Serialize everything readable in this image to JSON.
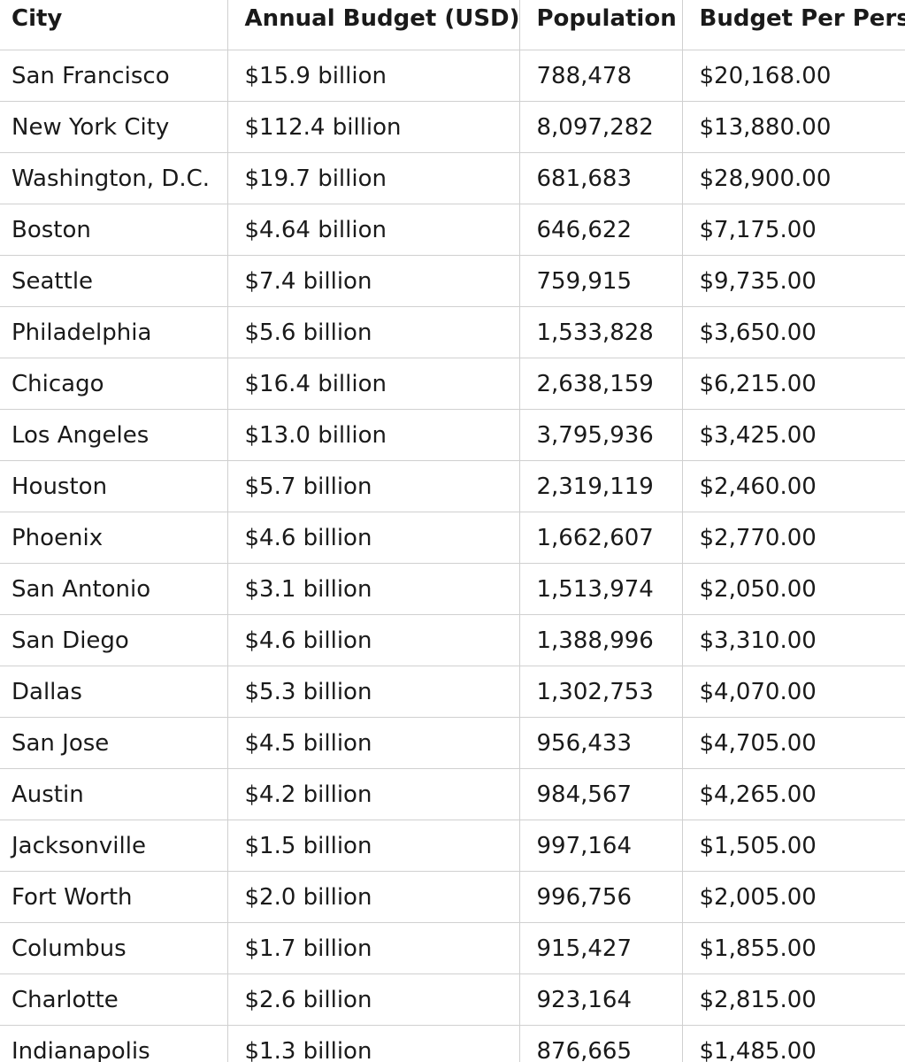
{
  "table": {
    "headers": [
      "City",
      "Annual Budget (USD)",
      "Population",
      "Budget Per Person"
    ],
    "rows": [
      [
        "San Francisco",
        "$15.9 billion",
        "788,478",
        "$20,168.00"
      ],
      [
        "New York City",
        "$112.4 billion",
        "8,097,282",
        "$13,880.00"
      ],
      [
        "Washington, D.C.",
        "$19.7 billion",
        "681,683",
        "$28,900.00"
      ],
      [
        "Boston",
        "$4.64 billion",
        "646,622",
        "$7,175.00"
      ],
      [
        "Seattle",
        "$7.4 billion",
        "759,915",
        "$9,735.00"
      ],
      [
        "Philadelphia",
        "$5.6 billion",
        "1,533,828",
        "$3,650.00"
      ],
      [
        "Chicago",
        "$16.4 billion",
        "2,638,159",
        "$6,215.00"
      ],
      [
        "Los Angeles",
        "$13.0 billion",
        "3,795,936",
        "$3,425.00"
      ],
      [
        "Houston",
        "$5.7 billion",
        "2,319,119",
        "$2,460.00"
      ],
      [
        "Phoenix",
        "$4.6 billion",
        "1,662,607",
        "$2,770.00"
      ],
      [
        "San Antonio",
        "$3.1 billion",
        "1,513,974",
        "$2,050.00"
      ],
      [
        "San Diego",
        "$4.6 billion",
        "1,388,996",
        "$3,310.00"
      ],
      [
        "Dallas",
        "$5.3 billion",
        "1,302,753",
        "$4,070.00"
      ],
      [
        "San Jose",
        "$4.5 billion",
        "956,433",
        "$4,705.00"
      ],
      [
        "Austin",
        "$4.2 billion",
        "984,567",
        "$4,265.00"
      ],
      [
        "Jacksonville",
        "$1.5 billion",
        "997,164",
        "$1,505.00"
      ],
      [
        "Fort Worth",
        "$2.0 billion",
        "996,756",
        "$2,005.00"
      ],
      [
        "Columbus",
        "$1.7 billion",
        "915,427",
        "$1,855.00"
      ],
      [
        "Charlotte",
        "$2.6 billion",
        "923,164",
        "$2,815.00"
      ],
      [
        "Indianapolis",
        "$1.3 billion",
        "876,665",
        "$1,485.00"
      ]
    ]
  }
}
